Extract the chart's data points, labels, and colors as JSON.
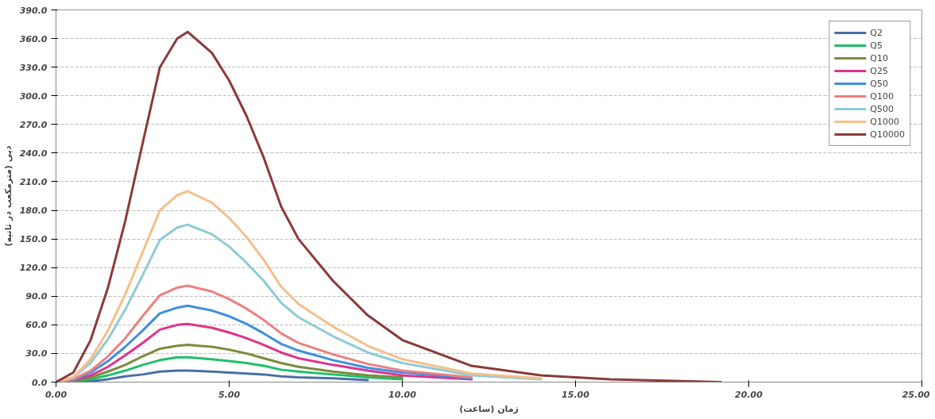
{
  "chart_data": {
    "type": "line",
    "xlabel": "زمان (ساعت)",
    "ylabel": "دبی (مترمکعب در ثانیه)",
    "x": [
      0,
      0.5,
      1,
      1.5,
      2,
      2.5,
      3,
      3.5,
      3.8,
      4.5,
      5,
      5.5,
      6,
      6.5,
      7,
      8,
      9,
      10,
      12,
      14,
      16,
      19.2
    ],
    "xlim": [
      0,
      25
    ],
    "ylim": [
      0,
      390
    ],
    "xticks": [
      {
        "value": 0,
        "label": "0.00"
      },
      {
        "value": 5,
        "label": "5.00"
      },
      {
        "value": 10,
        "label": "10.00"
      },
      {
        "value": 15,
        "label": "15.00"
      },
      {
        "value": 20,
        "label": "20.00"
      },
      {
        "value": 25,
        "label": "25.00"
      }
    ],
    "yticks": [
      {
        "value": 0,
        "label": "0.0"
      },
      {
        "value": 30,
        "label": "30.0"
      },
      {
        "value": 60,
        "label": "60.0"
      },
      {
        "value": 90,
        "label": "90.0"
      },
      {
        "value": 120,
        "label": "120.0"
      },
      {
        "value": 150,
        "label": "150.0"
      },
      {
        "value": 180,
        "label": "180.0"
      },
      {
        "value": 210,
        "label": "210.0"
      },
      {
        "value": 240,
        "label": "240.0"
      },
      {
        "value": 270,
        "label": "270.0"
      },
      {
        "value": 300,
        "label": "300.0"
      },
      {
        "value": 330,
        "label": "330.0"
      },
      {
        "value": 360,
        "label": "360.0"
      },
      {
        "value": 390,
        "label": "390.0"
      }
    ],
    "grid": "y",
    "legend": "top right",
    "line_style": "solid",
    "series": [
      {
        "name": "Q2",
        "color": "#4a6fa5",
        "x": [
          0,
          1,
          1.5,
          2,
          2.5,
          3,
          3.5,
          3.8,
          4.5,
          5,
          5.5,
          6,
          6.5,
          7,
          8,
          9
        ],
        "values": [
          0,
          1,
          3,
          6,
          8,
          11,
          12,
          12,
          11,
          10,
          9,
          8,
          6,
          5,
          4,
          2
        ]
      },
      {
        "name": "Q5",
        "color": "#1fbf6a",
        "x": [
          0,
          1,
          1.5,
          2,
          2.5,
          3,
          3.5,
          3.8,
          4.5,
          5,
          5.5,
          6,
          6.5,
          7,
          8,
          9,
          10
        ],
        "values": [
          0,
          3,
          7,
          12,
          18,
          23,
          26,
          26,
          24,
          22,
          20,
          17,
          13,
          11,
          8,
          5,
          3
        ]
      },
      {
        "name": "Q10",
        "color": "#7a8c3c",
        "x": [
          0,
          0.5,
          1,
          1.5,
          2,
          2.5,
          3,
          3.5,
          3.8,
          4.5,
          5,
          5.5,
          6,
          6.5,
          7,
          8,
          9,
          10
        ],
        "values": [
          0,
          1,
          5,
          11,
          18,
          27,
          35,
          38,
          39,
          37,
          34,
          30,
          25,
          20,
          16,
          11,
          7,
          5
        ]
      },
      {
        "name": "Q25",
        "color": "#e0328c",
        "x": [
          0,
          0.5,
          1,
          1.5,
          2,
          2.5,
          3,
          3.5,
          3.8,
          4.5,
          5,
          5.5,
          6,
          6.5,
          7,
          8,
          9,
          10,
          12
        ],
        "values": [
          0,
          2,
          7,
          16,
          28,
          41,
          55,
          60,
          61,
          57,
          52,
          46,
          39,
          31,
          25,
          18,
          12,
          7,
          3
        ]
      },
      {
        "name": "Q50",
        "color": "#3f8fe0",
        "x": [
          0,
          0.5,
          1,
          1.5,
          2,
          2.5,
          3,
          3.5,
          3.8,
          4.5,
          5,
          5.5,
          6,
          6.5,
          7,
          8,
          9,
          10,
          12
        ],
        "values": [
          0,
          2,
          10,
          22,
          37,
          54,
          72,
          78,
          80,
          75,
          69,
          61,
          51,
          40,
          33,
          23,
          15,
          10,
          4
        ]
      },
      {
        "name": "Q100",
        "color": "#ee7f7f",
        "x": [
          0,
          0.5,
          1,
          1.5,
          2,
          2.5,
          3,
          3.5,
          3.8,
          4.5,
          5,
          5.5,
          6,
          6.5,
          7,
          8,
          9,
          10,
          12
        ],
        "values": [
          0,
          3,
          12,
          27,
          46,
          69,
          91,
          99,
          101,
          95,
          87,
          77,
          65,
          51,
          41,
          29,
          19,
          12,
          5
        ]
      },
      {
        "name": "Q500",
        "color": "#8ecbd6",
        "x": [
          0,
          0.5,
          1,
          1.5,
          2,
          2.5,
          3,
          3.5,
          3.8,
          4.5,
          5,
          5.5,
          6,
          6.5,
          7,
          8,
          9,
          10,
          12,
          14
        ],
        "values": [
          0,
          5,
          20,
          45,
          76,
          112,
          149,
          162,
          165,
          155,
          142,
          125,
          106,
          83,
          68,
          48,
          31,
          20,
          7,
          3
        ]
      },
      {
        "name": "Q1000",
        "color": "#f5bf8a",
        "x": [
          0,
          0.5,
          1,
          1.5,
          2,
          2.5,
          3,
          3.5,
          3.8,
          4.5,
          5,
          5.5,
          6,
          6.5,
          7,
          8,
          9,
          10,
          12,
          14
        ],
        "values": [
          0,
          5,
          24,
          54,
          92,
          136,
          180,
          196,
          200,
          188,
          172,
          152,
          128,
          100,
          82,
          58,
          38,
          24,
          9,
          4
        ]
      },
      {
        "name": "Q10000",
        "color": "#8b3a3a",
        "values": [
          0,
          10,
          44,
          99,
          169,
          250,
          330,
          360,
          367,
          345,
          316,
          279,
          235,
          184,
          150,
          106,
          70,
          44,
          17,
          7,
          3,
          0
        ]
      }
    ]
  }
}
